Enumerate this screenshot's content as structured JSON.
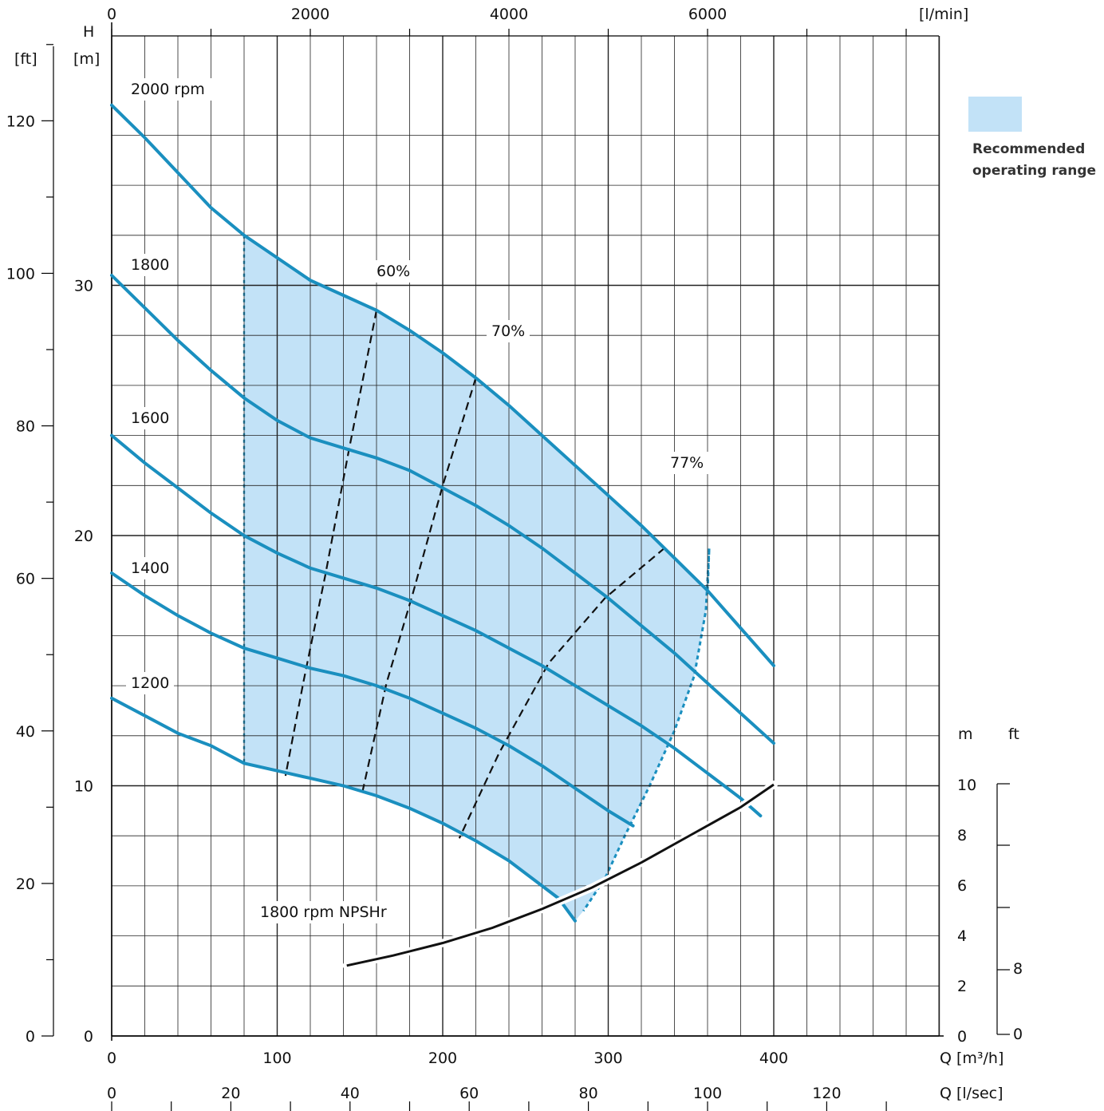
{
  "chart_data": {
    "type": "line",
    "colors": {
      "curve": "#1a8fbf",
      "range_fill": "#c2e2f7",
      "npsh": "#111111",
      "efficiency": "#111111",
      "grid": "#222222"
    },
    "axes": {
      "x_primary": {
        "label": "Q [m³/h]",
        "range": [
          0,
          500
        ],
        "ticks": [
          "0",
          "100",
          "200",
          "300",
          "400"
        ],
        "tick_values": [
          0,
          100,
          200,
          300,
          400
        ]
      },
      "x_top": {
        "label": "[l/min]",
        "ticks": [
          "0",
          "2000",
          "4000",
          "6000"
        ],
        "tick_values": [
          0,
          2000,
          4000,
          6000
        ]
      },
      "x_bottom": {
        "label": "Q [l/sec]",
        "ticks": [
          "0",
          "20",
          "40",
          "60",
          "80",
          "100",
          "120"
        ],
        "tick_values": [
          0,
          20,
          40,
          60,
          80,
          100,
          120
        ]
      },
      "y_head_m": {
        "title": "H",
        "unit": "[m]",
        "range": [
          0,
          37
        ],
        "ticks": [
          "10",
          "20",
          "30"
        ],
        "tick_values": [
          10,
          20,
          30
        ]
      },
      "y_head_ft": {
        "unit": "[ft]",
        "ticks": [
          "0",
          "20",
          "40",
          "60",
          "80",
          "100",
          "120"
        ],
        "tick_values": [
          0,
          20,
          40,
          60,
          80,
          100,
          120
        ]
      },
      "y_npsh_m": {
        "unit": "m",
        "ticks": [
          "0",
          "2",
          "4",
          "6",
          "8",
          "10"
        ],
        "tick_values": [
          0,
          2,
          4,
          6,
          8,
          10
        ]
      },
      "y_npsh_ft": {
        "unit": "ft",
        "ticks": [
          "0",
          "8"
        ],
        "tick_values": [
          0,
          8
        ]
      }
    },
    "series": [
      {
        "name": "2000 rpm",
        "label": "2000  rpm",
        "points": [
          [
            0,
            37.2
          ],
          [
            20,
            35.9
          ],
          [
            40,
            34.5
          ],
          [
            60,
            33.1
          ],
          [
            80,
            32
          ],
          [
            100,
            31.1
          ],
          [
            120,
            30.2
          ],
          [
            140,
            29.6
          ],
          [
            160,
            29
          ],
          [
            180,
            28.2
          ],
          [
            200,
            27.3
          ],
          [
            220,
            26.3
          ],
          [
            240,
            25.2
          ],
          [
            260,
            24
          ],
          [
            280,
            22.8
          ],
          [
            300,
            21.6
          ],
          [
            320,
            20.4
          ],
          [
            340,
            19.1
          ],
          [
            360,
            17.8
          ],
          [
            380,
            16.3
          ],
          [
            400,
            14.8
          ]
        ]
      },
      {
        "name": "1800",
        "label": "1800",
        "points": [
          [
            0,
            30.4
          ],
          [
            20,
            29.1
          ],
          [
            40,
            27.8
          ],
          [
            60,
            26.6
          ],
          [
            80,
            25.5
          ],
          [
            100,
            24.6
          ],
          [
            120,
            23.9
          ],
          [
            140,
            23.5
          ],
          [
            160,
            23.1
          ],
          [
            180,
            22.6
          ],
          [
            200,
            21.9
          ],
          [
            220,
            21.2
          ],
          [
            240,
            20.4
          ],
          [
            260,
            19.5
          ],
          [
            280,
            18.5
          ],
          [
            300,
            17.5
          ],
          [
            320,
            16.4
          ],
          [
            340,
            15.3
          ],
          [
            360,
            14.1
          ],
          [
            380,
            12.9
          ],
          [
            400,
            11.7
          ]
        ]
      },
      {
        "name": "1600",
        "label": "1600",
        "points": [
          [
            0,
            24
          ],
          [
            20,
            22.9
          ],
          [
            40,
            21.9
          ],
          [
            60,
            20.9
          ],
          [
            80,
            20
          ],
          [
            100,
            19.3
          ],
          [
            120,
            18.7
          ],
          [
            140,
            18.3
          ],
          [
            160,
            17.9
          ],
          [
            180,
            17.4
          ],
          [
            200,
            16.8
          ],
          [
            220,
            16.2
          ],
          [
            240,
            15.5
          ],
          [
            260,
            14.8
          ],
          [
            280,
            14
          ],
          [
            300,
            13.2
          ],
          [
            320,
            12.4
          ],
          [
            340,
            11.5
          ],
          [
            360,
            10.5
          ],
          [
            370,
            10
          ],
          [
            380,
            9.5
          ],
          [
            392,
            8.8
          ]
        ]
      },
      {
        "name": "1400",
        "label": "1400",
        "points": [
          [
            0,
            18.5
          ],
          [
            20,
            17.6
          ],
          [
            40,
            16.8
          ],
          [
            60,
            16.1
          ],
          [
            80,
            15.5
          ],
          [
            100,
            15.1
          ],
          [
            120,
            14.7
          ],
          [
            140,
            14.4
          ],
          [
            160,
            14
          ],
          [
            180,
            13.5
          ],
          [
            200,
            12.9
          ],
          [
            220,
            12.3
          ],
          [
            240,
            11.6
          ],
          [
            260,
            10.8
          ],
          [
            280,
            9.9
          ],
          [
            300,
            9
          ],
          [
            315,
            8.4
          ]
        ]
      },
      {
        "name": "1200",
        "label": "1200",
        "points": [
          [
            0,
            13.5
          ],
          [
            20,
            12.8
          ],
          [
            40,
            12.1
          ],
          [
            60,
            11.6
          ],
          [
            80,
            10.9
          ],
          [
            100,
            10.6
          ],
          [
            120,
            10.3
          ],
          [
            140,
            10
          ],
          [
            160,
            9.6
          ],
          [
            180,
            9.1
          ],
          [
            200,
            8.5
          ],
          [
            220,
            7.8
          ],
          [
            240,
            7
          ],
          [
            260,
            6
          ],
          [
            270,
            5.5
          ],
          [
            280,
            4.6
          ]
        ]
      }
    ],
    "operating_range": {
      "name": "Recommended operating range",
      "legend_line1": "Recommended",
      "legend_line2": "operating range",
      "q_min": 80,
      "q_max": 360
    },
    "efficiency_lines": [
      {
        "label": "60%",
        "points": [
          [
            160,
            29
          ],
          [
            143,
            23.3
          ],
          [
            129,
            18.4
          ],
          [
            116,
            14.2
          ],
          [
            105,
            10.4
          ]
        ]
      },
      {
        "label": "70%",
        "points": [
          [
            220,
            26.3
          ],
          [
            200,
            22
          ],
          [
            182,
            17.7
          ],
          [
            166,
            14.1
          ],
          [
            151,
            9.6
          ]
        ]
      },
      {
        "label": "77%",
        "points": [
          [
            334,
            19.5
          ],
          [
            298,
            17.5
          ],
          [
            264,
            14.9
          ],
          [
            234,
            11.3
          ],
          [
            210,
            7.9
          ]
        ]
      }
    ],
    "npsh_curve": {
      "label": "1800 rpm NPSHr",
      "unit": "m",
      "points": [
        [
          142,
          2.8
        ],
        [
          170,
          3.2
        ],
        [
          200,
          3.7
        ],
        [
          230,
          4.3
        ],
        [
          260,
          5.05
        ],
        [
          290,
          5.9
        ],
        [
          320,
          6.9
        ],
        [
          350,
          8
        ],
        [
          380,
          9.1
        ],
        [
          400,
          10
        ]
      ]
    },
    "grid": true
  }
}
